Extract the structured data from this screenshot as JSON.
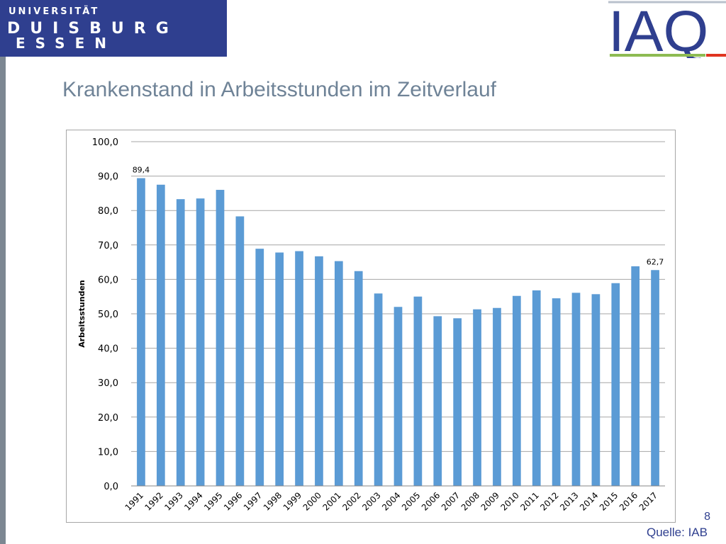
{
  "header": {
    "university": {
      "line1": "UNIVERSITÄT",
      "line2": "DUISBURG",
      "line3": "ESSEN"
    },
    "iaq_logo": "IAQ",
    "colors": {
      "brand_blue": "#2f3f8f",
      "iaq_green": "#8dbb52",
      "iaq_red": "#e0341f",
      "title_gray": "#6f8397"
    }
  },
  "slide": {
    "title": "Krankenstand in Arbeitsstunden im Zeitverlauf",
    "page_number": "8",
    "source": "Quelle: IAB"
  },
  "chart_data": {
    "type": "bar",
    "title": "",
    "xlabel": "",
    "ylabel": "Arbeitsstunden",
    "ylim": [
      0,
      100
    ],
    "yticks": [
      "0,0",
      "10,0",
      "20,0",
      "30,0",
      "40,0",
      "50,0",
      "60,0",
      "70,0",
      "80,0",
      "90,0",
      "100,0"
    ],
    "grid": true,
    "bar_color": "#5b9bd5",
    "categories": [
      "1991",
      "1992",
      "1993",
      "1994",
      "1995",
      "1996",
      "1997",
      "1998",
      "1999",
      "2000",
      "2001",
      "2002",
      "2003",
      "2004",
      "2005",
      "2006",
      "2007",
      "2008",
      "2009",
      "2010",
      "2011",
      "2012",
      "2013",
      "2014",
      "2015",
      "2016",
      "2017"
    ],
    "values": [
      89.4,
      87.5,
      83.3,
      83.5,
      86.0,
      78.3,
      68.9,
      67.8,
      68.2,
      66.7,
      65.3,
      62.4,
      55.9,
      52.0,
      55.0,
      49.3,
      48.7,
      51.3,
      51.7,
      55.2,
      56.8,
      54.5,
      56.1,
      55.7,
      58.9,
      63.8,
      62.7
    ],
    "data_labels": [
      {
        "index": 0,
        "text": "89,4"
      },
      {
        "index": 26,
        "text": "62,7"
      }
    ]
  }
}
